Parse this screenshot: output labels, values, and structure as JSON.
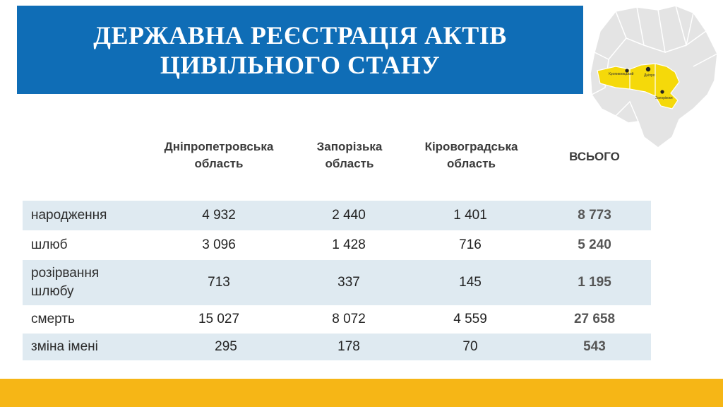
{
  "title": {
    "line1": "ДЕРЖАВНА РЕЄСТРАЦІЯ АКТІВ",
    "line2": "ЦИВІЛЬНОГО СТАНУ"
  },
  "map": {
    "labels": [
      "Кропивницький",
      "Дніпро",
      "Запоріжжя"
    ],
    "highlight_color": "#f5d90a",
    "base_color": "#e3e3e3"
  },
  "table": {
    "headers": [
      {
        "line1": "Дніпропетровська",
        "line2": "область"
      },
      {
        "line1": "Запорізька",
        "line2": "область"
      },
      {
        "line1": "Кіровоградська",
        "line2": "область"
      },
      {
        "line1": "ВСЬОГО",
        "line2": ""
      }
    ],
    "rows": [
      {
        "label": "народження",
        "label2": "",
        "values": [
          "4 932",
          "2 440",
          "1 401",
          "8 773"
        ]
      },
      {
        "label": "шлюб",
        "label2": "",
        "values": [
          "3 096",
          "1 428",
          "716",
          "5 240"
        ]
      },
      {
        "label": "розірвання",
        "label2": "шлюбу",
        "values": [
          "713",
          "337",
          "145",
          "1 195"
        ]
      },
      {
        "label": "смерть",
        "label2": "",
        "values": [
          "15 027",
          "8 072",
          "4 559",
          "27 658"
        ]
      },
      {
        "label": "зміна імені",
        "label2": "",
        "values": [
          "295",
          "178",
          "70",
          "543"
        ]
      }
    ]
  },
  "colors": {
    "banner": "#0f6db6",
    "row_shade": "#dfeaf1",
    "footer": "#f6b616"
  }
}
